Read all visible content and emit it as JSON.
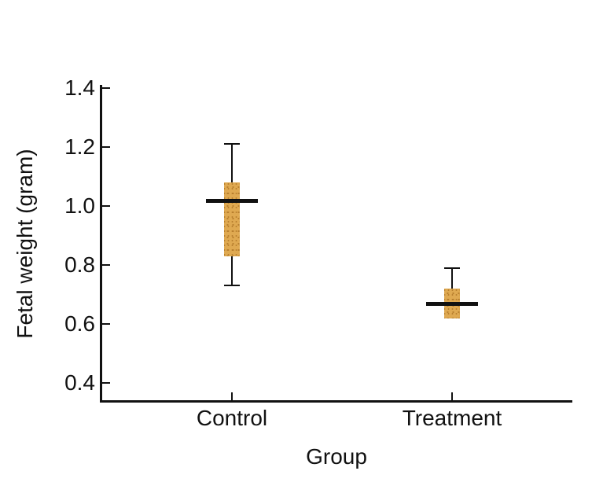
{
  "figure": {
    "background": "#ffffff",
    "ink_color": "#111111",
    "box_fill": "#dfa951",
    "box_dot_color": "#b9802f"
  },
  "chart_data": {
    "type": "boxplot",
    "title": "",
    "xlabel": "Group",
    "ylabel": "Fetal weight (gram)",
    "categories": [
      "Control",
      "Treatment"
    ],
    "y_ticks": [
      0.4,
      0.6,
      0.8,
      1.0,
      1.2,
      1.4
    ],
    "ylim": [
      0.34,
      1.41
    ],
    "grid": false,
    "legend": false,
    "series": [
      {
        "name": "Control",
        "whisker_low": 0.73,
        "q1": 0.83,
        "median": 1.02,
        "q3": 1.08,
        "whisker_high": 1.21
      },
      {
        "name": "Treatment",
        "whisker_low": null,
        "q1": 0.62,
        "median": 0.67,
        "q3": 0.72,
        "whisker_high": 0.79
      }
    ]
  }
}
